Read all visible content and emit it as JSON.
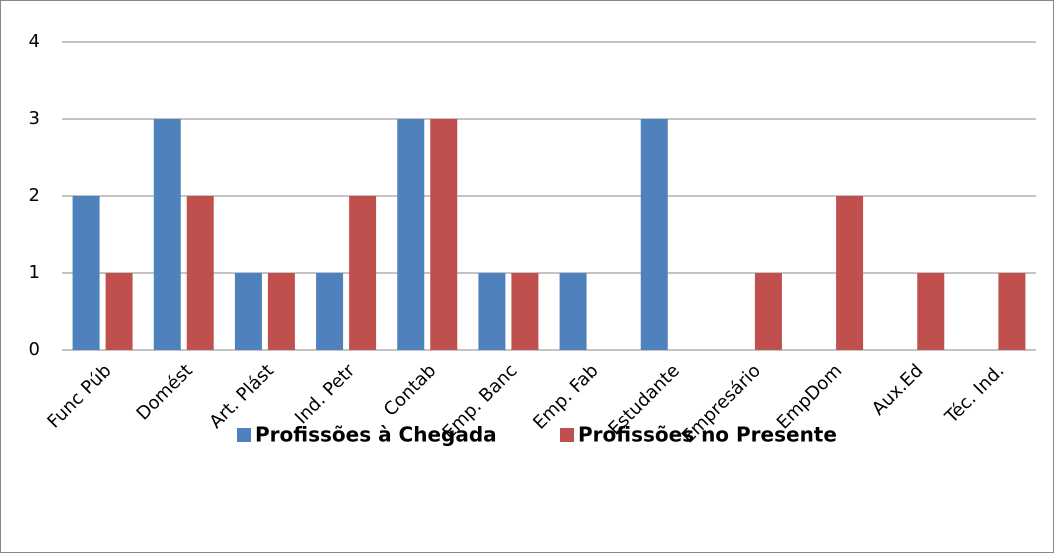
{
  "chart_data": {
    "type": "bar",
    "categories": [
      "Func Púb",
      "Domést",
      "Art. Plást",
      "Ind. Petr",
      "Contab",
      "Emp. Banc",
      "Emp. Fab",
      "Estudante",
      "Empresário",
      "EmpDom",
      "Aux.Ed",
      "Téc. Ind."
    ],
    "series": [
      {
        "name": "Profissões à Chegada",
        "color": "#4f81bd",
        "values": [
          2,
          3,
          1,
          1,
          3,
          1,
          1,
          3,
          0,
          0,
          0,
          0
        ]
      },
      {
        "name": "Profissões no Presente",
        "color": "#c0504d",
        "values": [
          1,
          2,
          1,
          2,
          3,
          1,
          0,
          0,
          1,
          2,
          1,
          1
        ]
      }
    ],
    "ylim": [
      0,
      4
    ],
    "yticks": [
      0,
      1,
      2,
      3,
      4
    ],
    "grid": true,
    "legend": "bottom"
  }
}
